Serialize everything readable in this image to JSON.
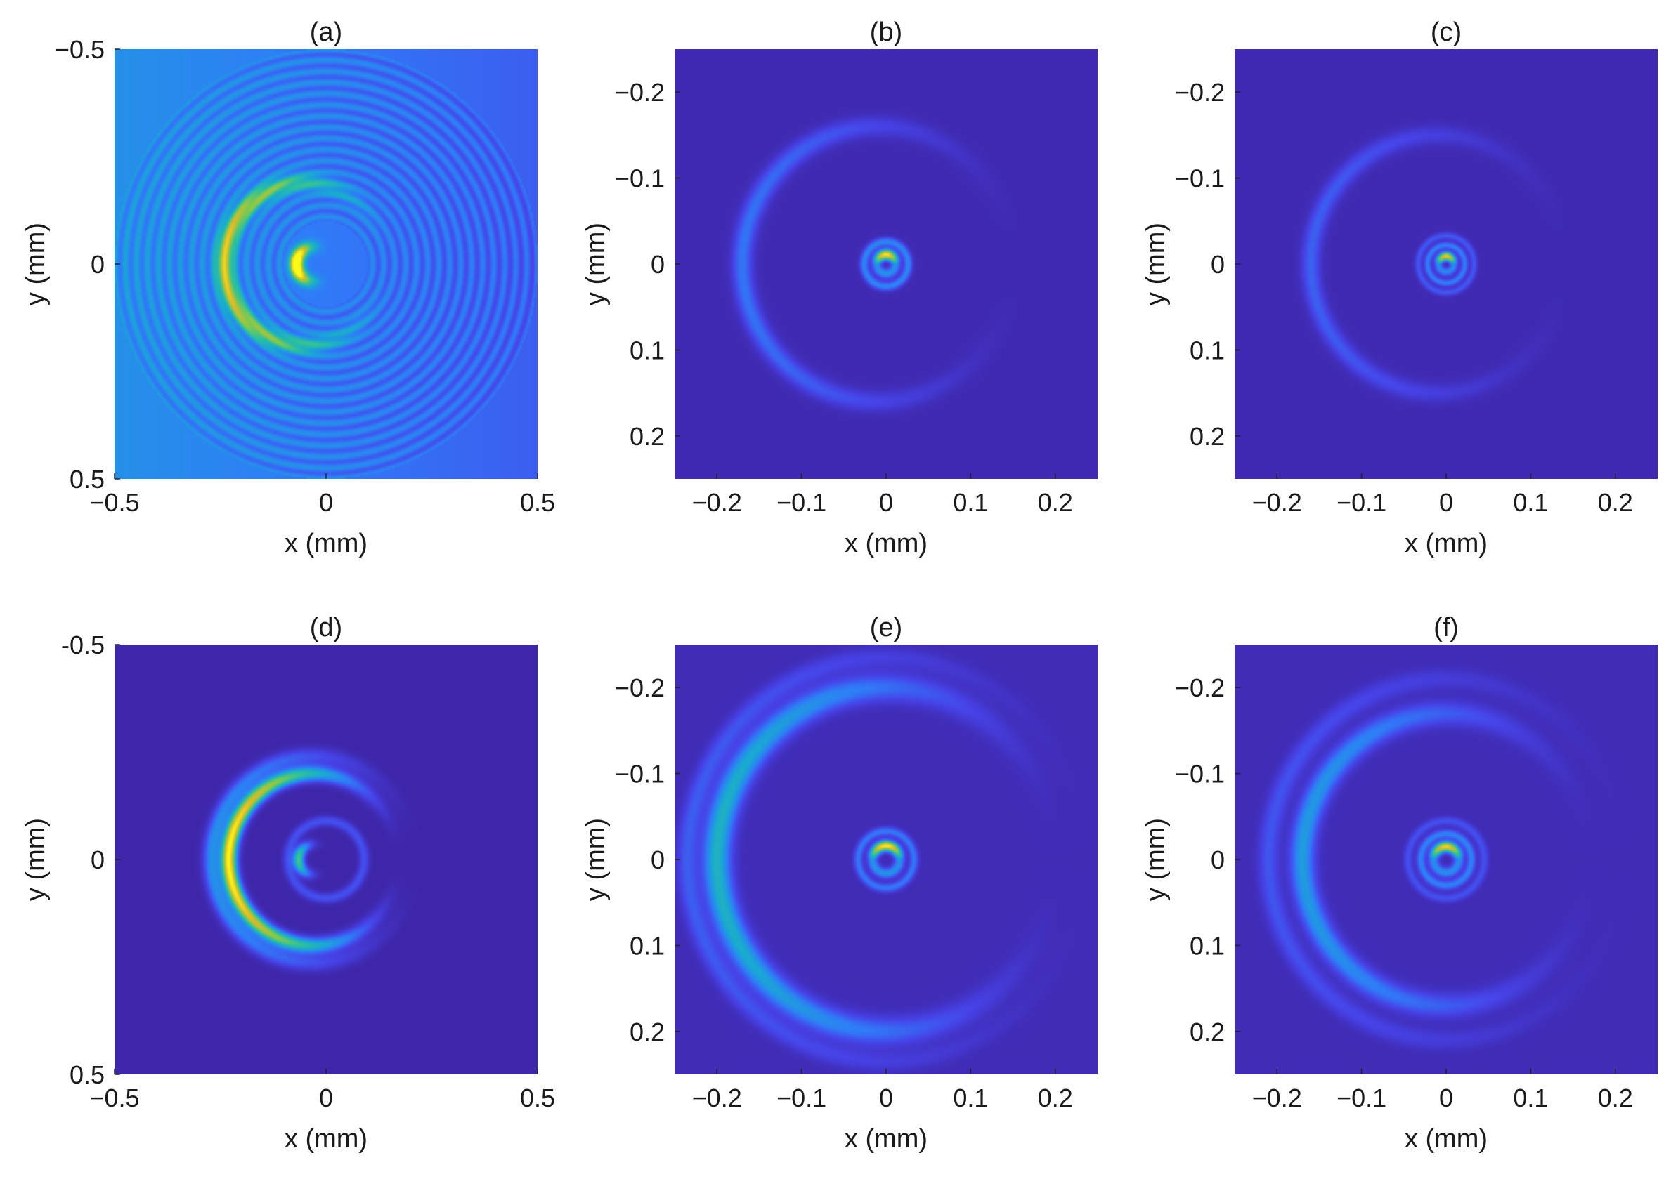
{
  "colormap": [
    "#3e26a8",
    "#4743e8",
    "#2f7cf8",
    "#19a9d4",
    "#2ec19a",
    "#86c94b",
    "#dcb82c",
    "#fafa14"
  ],
  "chart_data": [
    {
      "type": "heatmap",
      "title": "(a)",
      "xlabel": "x (mm)",
      "ylabel": "y (mm)",
      "xlim": [
        -0.5,
        0.5
      ],
      "ylim": [
        -0.5,
        0.5
      ],
      "y_reversed": true,
      "xticks": [
        -0.5,
        0,
        0.5
      ],
      "xtick_labels": [
        "−0.5",
        "0",
        "0.5"
      ],
      "yticks": [
        -0.5,
        0,
        0.5
      ],
      "ytick_labels": [
        "−0.5",
        "0",
        "0.5"
      ],
      "background_level": 0.28,
      "left_bias": 0.14,
      "features": [
        {
          "kind": "crescent",
          "cx": -0.03,
          "cy": 0.0,
          "r": 0.04,
          "w": 0.015,
          "peak": 1.0,
          "dir": "left"
        },
        {
          "kind": "ring",
          "cx": -0.05,
          "cy": 0.0,
          "r": 0.19,
          "w": 0.02,
          "peak": 0.55,
          "dir": "left"
        },
        {
          "kind": "fringes",
          "cx": 0.0,
          "cy": 0.0,
          "r_start": 0.1,
          "r_end": 0.5,
          "period": 0.026,
          "amp": 0.07
        }
      ]
    },
    {
      "type": "heatmap",
      "title": "(b)",
      "xlabel": "x (mm)",
      "ylabel": "y (mm)",
      "xlim": [
        -0.25,
        0.25
      ],
      "ylim": [
        -0.25,
        0.25
      ],
      "y_reversed": true,
      "xticks": [
        -0.2,
        -0.1,
        0,
        0.1,
        0.2
      ],
      "xtick_labels": [
        "−0.2",
        "−0.1",
        "0",
        "0.1",
        "0.2"
      ],
      "yticks": [
        -0.2,
        -0.1,
        0,
        0.1,
        0.2
      ],
      "ytick_labels": [
        "−0.2",
        "−0.1",
        "0",
        "0.1",
        "0.2"
      ],
      "background_level": 0.02,
      "left_bias": 0.0,
      "features": [
        {
          "kind": "ring",
          "cx": 0.0,
          "cy": 0.0,
          "r": 0.011,
          "w": 0.006,
          "peak": 0.95,
          "dir": "top"
        },
        {
          "kind": "ring",
          "cx": 0.0,
          "cy": 0.0,
          "r": 0.026,
          "w": 0.005,
          "peak": 0.3,
          "dir": "none"
        },
        {
          "kind": "ring",
          "cx": -0.01,
          "cy": 0.0,
          "r": 0.16,
          "w": 0.012,
          "peak": 0.25,
          "dir": "left"
        }
      ]
    },
    {
      "type": "heatmap",
      "title": "(c)",
      "xlabel": "x (mm)",
      "ylabel": "y (mm)",
      "xlim": [
        -0.25,
        0.25
      ],
      "ylim": [
        -0.25,
        0.25
      ],
      "y_reversed": true,
      "xticks": [
        -0.2,
        -0.1,
        0,
        0.1,
        0.2
      ],
      "xtick_labels": [
        "−0.2",
        "−0.1",
        "0",
        "0.1",
        "0.2"
      ],
      "yticks": [
        -0.2,
        -0.1,
        0,
        0.1,
        0.2
      ],
      "ytick_labels": [
        "−0.2",
        "−0.1",
        "0",
        "0.1",
        "0.2"
      ],
      "background_level": 0.02,
      "left_bias": 0.0,
      "features": [
        {
          "kind": "ring",
          "cx": 0.0,
          "cy": 0.0,
          "r": 0.009,
          "w": 0.005,
          "peak": 0.9,
          "dir": "top"
        },
        {
          "kind": "ring",
          "cx": 0.0,
          "cy": 0.0,
          "r": 0.022,
          "w": 0.004,
          "peak": 0.28,
          "dir": "none"
        },
        {
          "kind": "ring",
          "cx": 0.0,
          "cy": 0.0,
          "r": 0.033,
          "w": 0.004,
          "peak": 0.18,
          "dir": "none"
        },
        {
          "kind": "ring",
          "cx": -0.01,
          "cy": 0.0,
          "r": 0.15,
          "w": 0.011,
          "peak": 0.2,
          "dir": "left"
        }
      ]
    },
    {
      "type": "heatmap",
      "title": "(d)",
      "xlabel": "x (mm)",
      "ylabel": "y (mm)",
      "xlim": [
        -0.5,
        0.5
      ],
      "ylim": [
        -0.5,
        0.5
      ],
      "y_reversed": true,
      "xticks": [
        -0.5,
        0,
        0.5
      ],
      "xtick_labels": [
        "−0.5",
        "0",
        "0.5"
      ],
      "yticks": [
        -0.5,
        0,
        0.5
      ],
      "ytick_labels": [
        "-0.5",
        "0",
        "0.5"
      ],
      "background_level": 0.0,
      "left_bias": 0.0,
      "features": [
        {
          "kind": "crescent",
          "cx": -0.03,
          "cy": 0.0,
          "r": 0.035,
          "w": 0.013,
          "peak": 0.62,
          "dir": "left"
        },
        {
          "kind": "ring",
          "cx": -0.03,
          "cy": 0.0,
          "r": 0.2,
          "w": 0.018,
          "peak": 1.0,
          "dir": "left"
        },
        {
          "kind": "ring",
          "cx": -0.03,
          "cy": 0.0,
          "r": 0.24,
          "w": 0.02,
          "peak": 0.35,
          "dir": "left"
        },
        {
          "kind": "ring",
          "cx": 0.0,
          "cy": 0.0,
          "r": 0.09,
          "w": 0.012,
          "peak": 0.18,
          "dir": "none"
        }
      ]
    },
    {
      "type": "heatmap",
      "title": "(e)",
      "xlabel": "x (mm)",
      "ylabel": "y (mm)",
      "xlim": [
        -0.25,
        0.25
      ],
      "ylim": [
        -0.25,
        0.25
      ],
      "y_reversed": true,
      "xticks": [
        -0.2,
        -0.1,
        0,
        0.1,
        0.2
      ],
      "xtick_labels": [
        "−0.2",
        "−0.1",
        "0",
        "0.1",
        "0.2"
      ],
      "yticks": [
        -0.2,
        -0.1,
        0,
        0.1,
        0.2
      ],
      "ytick_labels": [
        "−0.2",
        "−0.1",
        "0",
        "0.1",
        "0.2"
      ],
      "background_level": 0.03,
      "left_bias": 0.0,
      "features": [
        {
          "kind": "ring",
          "cx": 0.0,
          "cy": 0.0,
          "r": 0.016,
          "w": 0.006,
          "peak": 0.95,
          "dir": "top"
        },
        {
          "kind": "ring",
          "cx": 0.0,
          "cy": 0.0,
          "r": 0.033,
          "w": 0.005,
          "peak": 0.25,
          "dir": "none"
        },
        {
          "kind": "ring",
          "cx": 0.0,
          "cy": 0.0,
          "r": 0.2,
          "w": 0.016,
          "peak": 0.45,
          "dir": "left"
        },
        {
          "kind": "ring",
          "cx": 0.0,
          "cy": 0.0,
          "r": 0.235,
          "w": 0.012,
          "peak": 0.18,
          "dir": "left"
        }
      ]
    },
    {
      "type": "heatmap",
      "title": "(f)",
      "xlabel": "x (mm)",
      "ylabel": "y (mm)",
      "xlim": [
        -0.25,
        0.25
      ],
      "ylim": [
        -0.25,
        0.25
      ],
      "y_reversed": true,
      "xticks": [
        -0.2,
        -0.1,
        0,
        0.1,
        0.2
      ],
      "xtick_labels": [
        "−0.2",
        "−0.1",
        "0",
        "0.1",
        "0.2"
      ],
      "yticks": [
        -0.2,
        -0.1,
        0,
        0.1,
        0.2
      ],
      "ytick_labels": [
        "−0.2",
        "−0.1",
        "0",
        "0.1",
        "0.2"
      ],
      "background_level": 0.03,
      "left_bias": 0.0,
      "features": [
        {
          "kind": "ring",
          "cx": 0.0,
          "cy": 0.0,
          "r": 0.015,
          "w": 0.006,
          "peak": 0.9,
          "dir": "top"
        },
        {
          "kind": "ring",
          "cx": 0.0,
          "cy": 0.0,
          "r": 0.03,
          "w": 0.005,
          "peak": 0.28,
          "dir": "none"
        },
        {
          "kind": "ring",
          "cx": 0.0,
          "cy": 0.0,
          "r": 0.045,
          "w": 0.005,
          "peak": 0.15,
          "dir": "none"
        },
        {
          "kind": "ring",
          "cx": 0.0,
          "cy": 0.0,
          "r": 0.17,
          "w": 0.014,
          "peak": 0.36,
          "dir": "left"
        },
        {
          "kind": "ring",
          "cx": 0.0,
          "cy": 0.0,
          "r": 0.21,
          "w": 0.012,
          "peak": 0.16,
          "dir": "left"
        }
      ]
    }
  ]
}
